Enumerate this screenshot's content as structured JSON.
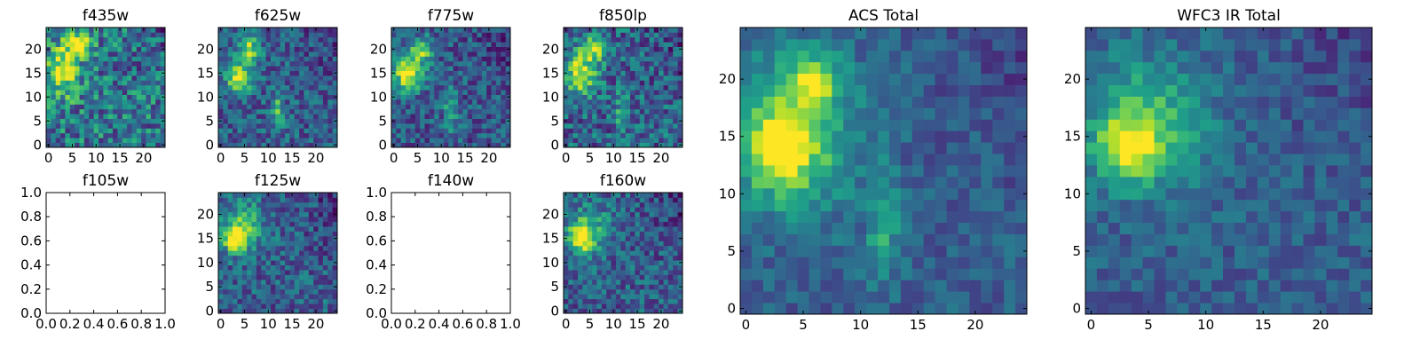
{
  "chart_data": [
    {
      "id": "p1",
      "title": "f435w",
      "type": "heatmap",
      "grid_size": 25,
      "has_image": true,
      "xlim": [
        -0.5,
        24.5
      ],
      "ylim": [
        -0.5,
        24.5
      ],
      "xticks": [
        0,
        5,
        10,
        15,
        20
      ],
      "yticks": [
        0,
        5,
        10,
        15,
        20
      ],
      "hotspots": [
        {
          "x": 3,
          "y": 15,
          "amp": 0.55,
          "sx": 2.2,
          "sy": 3.5
        },
        {
          "x": 6,
          "y": 21,
          "amp": 0.55,
          "sx": 2.0,
          "sy": 1.8
        }
      ],
      "background": 0.4,
      "noise": 0.28,
      "seed": 11
    },
    {
      "id": "p2",
      "title": "f625w",
      "type": "heatmap",
      "grid_size": 25,
      "has_image": true,
      "xlim": [
        -0.5,
        24.5
      ],
      "ylim": [
        -0.5,
        24.5
      ],
      "xticks": [
        0,
        5,
        10,
        15,
        20
      ],
      "yticks": [
        0,
        5,
        10,
        15,
        20
      ],
      "hotspots": [
        {
          "x": 4,
          "y": 14,
          "amp": 0.65,
          "sx": 2.0,
          "sy": 2.2
        },
        {
          "x": 6,
          "y": 20,
          "amp": 0.55,
          "sx": 1.6,
          "sy": 1.8
        },
        {
          "x": 12,
          "y": 7,
          "amp": 0.4,
          "sx": 0.9,
          "sy": 3.0
        }
      ],
      "background": 0.3,
      "noise": 0.2,
      "seed": 23
    },
    {
      "id": "p3",
      "title": "f775w",
      "type": "heatmap",
      "grid_size": 25,
      "has_image": true,
      "xlim": [
        -0.5,
        24.5
      ],
      "ylim": [
        -0.5,
        24.5
      ],
      "xticks": [
        0,
        5,
        10,
        15,
        20
      ],
      "yticks": [
        0,
        5,
        10,
        15,
        20
      ],
      "hotspots": [
        {
          "x": 3,
          "y": 15,
          "amp": 0.7,
          "sx": 2.2,
          "sy": 2.6
        },
        {
          "x": 6,
          "y": 20,
          "amp": 0.5,
          "sx": 1.7,
          "sy": 1.8
        },
        {
          "x": 12,
          "y": 7,
          "amp": 0.4,
          "sx": 0.9,
          "sy": 3.0
        }
      ],
      "background": 0.28,
      "noise": 0.2,
      "seed": 37
    },
    {
      "id": "p4",
      "title": "f850lp",
      "type": "heatmap",
      "grid_size": 25,
      "has_image": true,
      "xlim": [
        -0.5,
        24.5
      ],
      "ylim": [
        -0.5,
        24.5
      ],
      "xticks": [
        0,
        5,
        10,
        15,
        20
      ],
      "yticks": [
        0,
        5,
        10,
        15,
        20
      ],
      "hotspots": [
        {
          "x": 3,
          "y": 15,
          "amp": 0.6,
          "sx": 2.4,
          "sy": 3.0
        },
        {
          "x": 6,
          "y": 20,
          "amp": 0.5,
          "sx": 1.8,
          "sy": 1.8
        },
        {
          "x": 12,
          "y": 7,
          "amp": 0.3,
          "sx": 1.0,
          "sy": 3.0
        }
      ],
      "background": 0.32,
      "noise": 0.24,
      "seed": 41
    },
    {
      "id": "p5",
      "title": "f105w",
      "type": "heatmap",
      "grid_size": 25,
      "has_image": false,
      "xlim": [
        0,
        1
      ],
      "ylim": [
        0,
        1
      ],
      "xticks": [
        0.0,
        0.2,
        0.4,
        0.6,
        0.8,
        1.0
      ],
      "yticks": [
        0.0,
        0.2,
        0.4,
        0.6,
        0.8,
        1.0
      ],
      "xtick_labels": [
        "0.0",
        "0.2",
        "0.4",
        "0.6",
        "0.8",
        "1.0"
      ],
      "ytick_labels": [
        "0.0",
        "0.2",
        "0.4",
        "0.6",
        "0.8",
        "1.0"
      ]
    },
    {
      "id": "p6",
      "title": "f125w",
      "type": "heatmap",
      "grid_size": 25,
      "has_image": true,
      "xlim": [
        -0.5,
        24.5
      ],
      "ylim": [
        -0.5,
        24.5
      ],
      "xticks": [
        0,
        5,
        10,
        15,
        20
      ],
      "yticks": [
        0,
        5,
        10,
        15,
        20
      ],
      "hotspots": [
        {
          "x": 3,
          "y": 15,
          "amp": 0.65,
          "sx": 1.8,
          "sy": 2.0
        },
        {
          "x": 5,
          "y": 18,
          "amp": 0.35,
          "sx": 3.0,
          "sy": 3.5
        }
      ],
      "background": 0.3,
      "noise": 0.2,
      "seed": 53
    },
    {
      "id": "p7",
      "title": "f140w",
      "type": "heatmap",
      "grid_size": 25,
      "has_image": false,
      "xlim": [
        0,
        1
      ],
      "ylim": [
        0,
        1
      ],
      "xticks": [
        0.0,
        0.2,
        0.4,
        0.6,
        0.8,
        1.0
      ],
      "yticks": [
        0.0,
        0.2,
        0.4,
        0.6,
        0.8,
        1.0
      ],
      "xtick_labels": [
        "0.0",
        "0.2",
        "0.4",
        "0.6",
        "0.8",
        "1.0"
      ],
      "ytick_labels": [
        "0.0",
        "0.2",
        "0.4",
        "0.6",
        "0.8",
        "1.0"
      ]
    },
    {
      "id": "p8",
      "title": "f160w",
      "type": "heatmap",
      "grid_size": 25,
      "has_image": true,
      "xlim": [
        -0.5,
        24.5
      ],
      "ylim": [
        -0.5,
        24.5
      ],
      "xticks": [
        0,
        5,
        10,
        15,
        20
      ],
      "yticks": [
        0,
        5,
        10,
        15,
        20
      ],
      "hotspots": [
        {
          "x": 3,
          "y": 15,
          "amp": 0.7,
          "sx": 1.8,
          "sy": 1.8
        },
        {
          "x": 5,
          "y": 17,
          "amp": 0.35,
          "sx": 3.0,
          "sy": 3.5
        }
      ],
      "background": 0.3,
      "noise": 0.2,
      "seed": 67
    },
    {
      "id": "p9",
      "title": "ACS Total",
      "type": "heatmap",
      "grid_size": 25,
      "has_image": true,
      "xlim": [
        -0.5,
        24.5
      ],
      "ylim": [
        -0.5,
        24.5
      ],
      "xticks": [
        0,
        5,
        10,
        15,
        20
      ],
      "yticks": [
        0,
        5,
        10,
        15,
        20
      ],
      "hotspots": [
        {
          "x": 3,
          "y": 14,
          "amp": 0.55,
          "sx": 2.0,
          "sy": 2.2
        },
        {
          "x": 6,
          "y": 20,
          "amp": 0.45,
          "sx": 1.6,
          "sy": 1.6
        },
        {
          "x": 4,
          "y": 15,
          "amp": 0.4,
          "sx": 4.0,
          "sy": 5.0
        },
        {
          "x": 12,
          "y": 7,
          "amp": 0.35,
          "sx": 0.9,
          "sy": 3.0
        }
      ],
      "background": 0.3,
      "noise": 0.12,
      "seed": 79
    },
    {
      "id": "p10",
      "title": "WFC3 IR Total",
      "type": "heatmap",
      "grid_size": 25,
      "has_image": true,
      "xlim": [
        -0.5,
        24.5
      ],
      "ylim": [
        -0.5,
        24.5
      ],
      "xticks": [
        0,
        5,
        10,
        15,
        20
      ],
      "yticks": [
        0,
        5,
        10,
        15,
        20
      ],
      "hotspots": [
        {
          "x": 3,
          "y": 14,
          "amp": 0.5,
          "sx": 1.8,
          "sy": 1.8
        },
        {
          "x": 5,
          "y": 16,
          "amp": 0.4,
          "sx": 3.6,
          "sy": 4.0
        }
      ],
      "background": 0.3,
      "noise": 0.12,
      "seed": 97
    }
  ],
  "colormap": [
    "#440154",
    "#482878",
    "#3e4989",
    "#31688e",
    "#26828e",
    "#1f9e89",
    "#35b779",
    "#6ece58",
    "#b5de2b",
    "#fde725"
  ]
}
